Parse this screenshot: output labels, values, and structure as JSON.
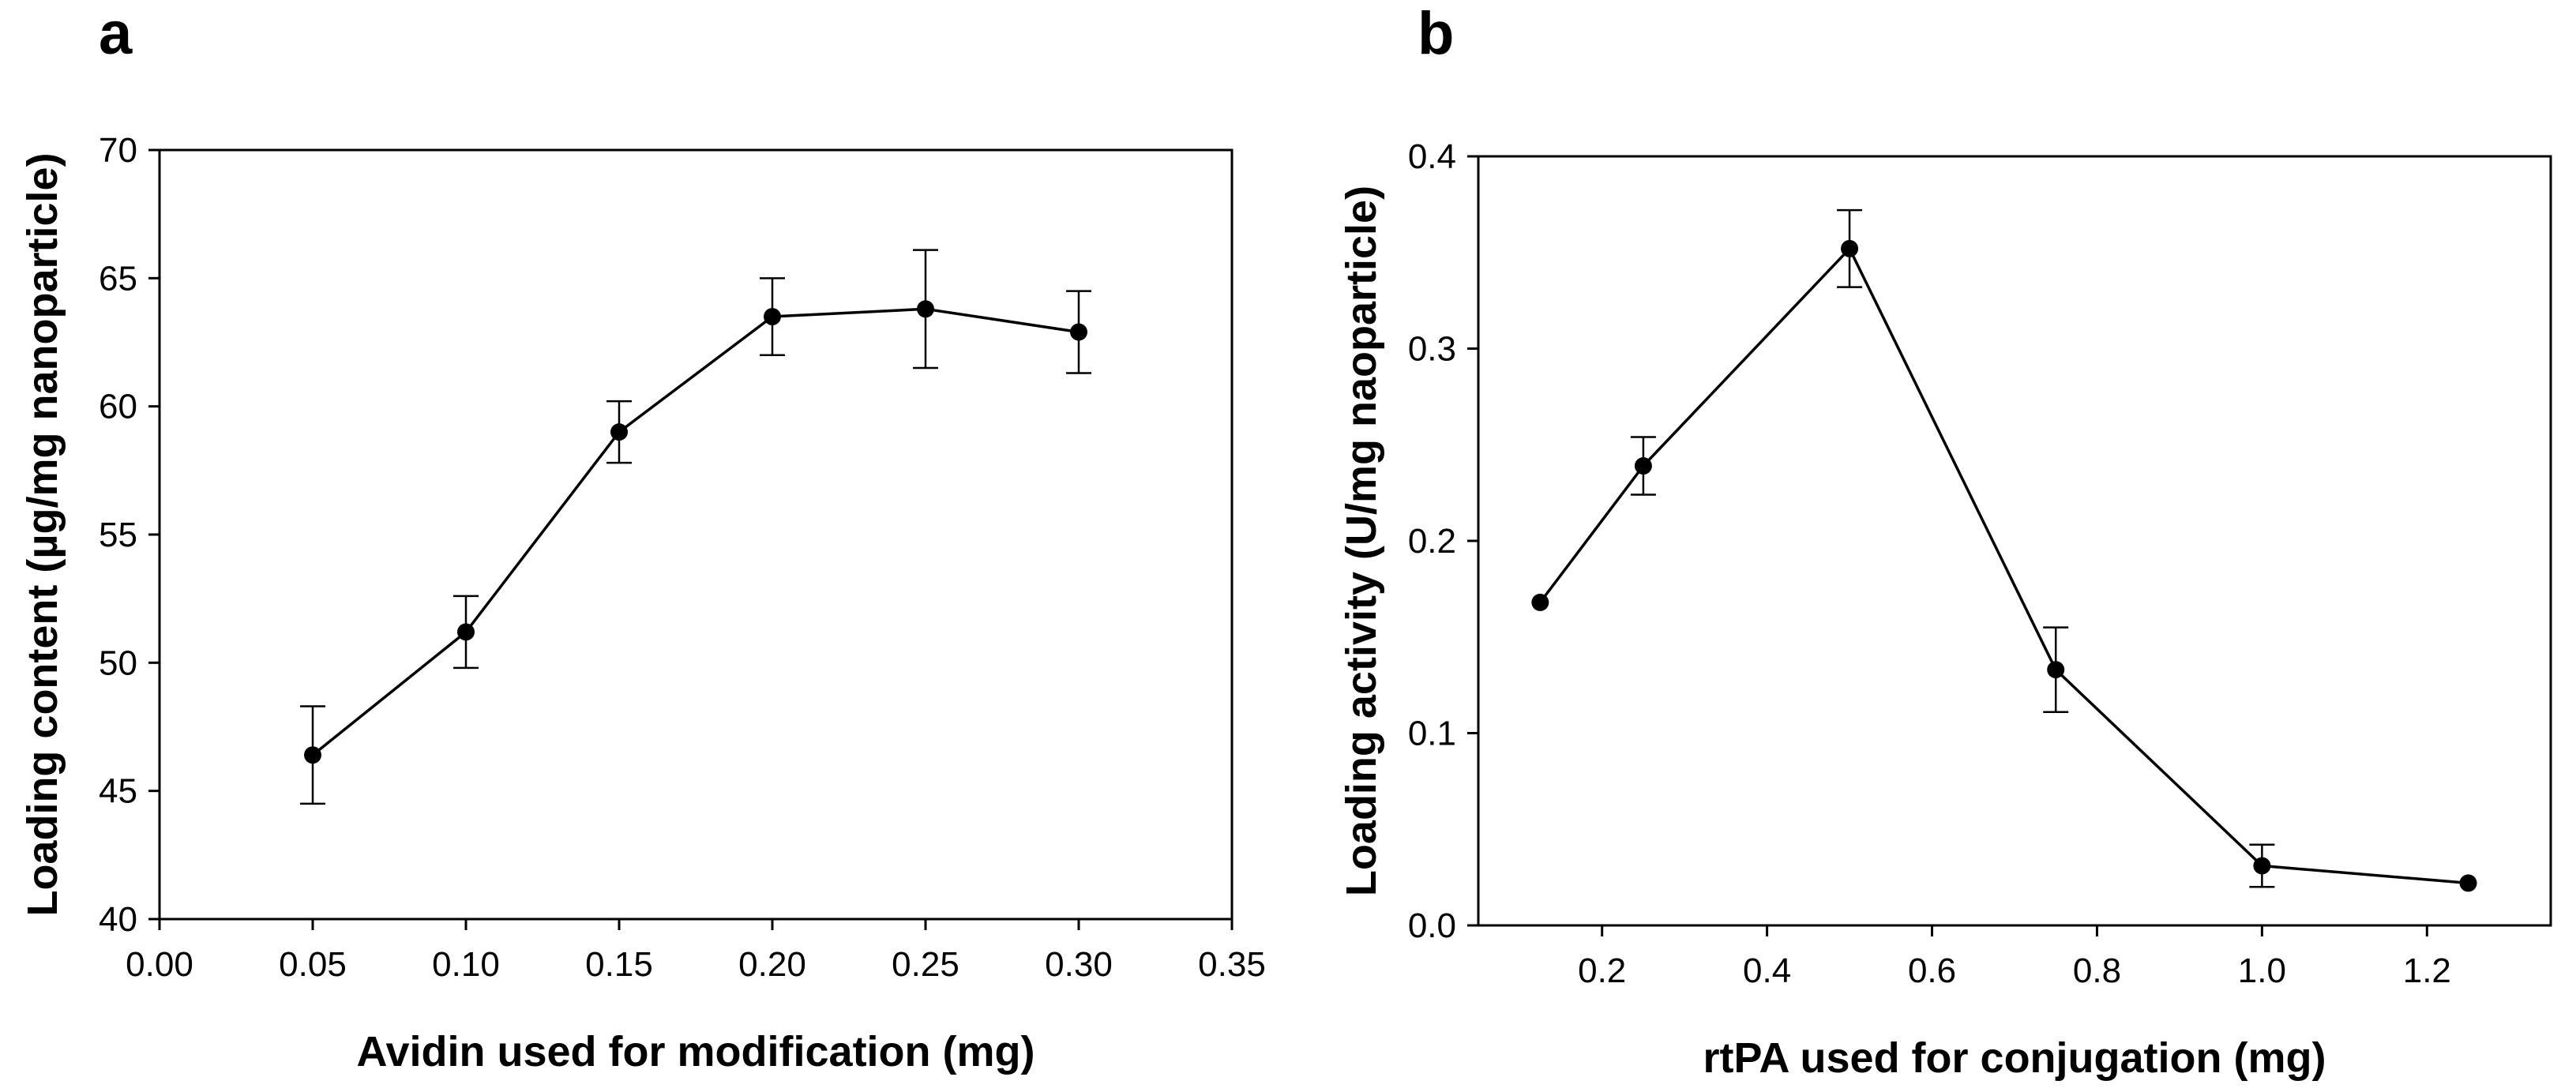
{
  "chart_data": [
    {
      "panel": "a",
      "type": "line",
      "title": "",
      "xlabel": "Avidin used for modification (mg)",
      "ylabel": "Loading content (µg/mg nanoparticle)",
      "xlim": [
        0.0,
        0.35
      ],
      "ylim": [
        40,
        70
      ],
      "xticks": [
        0.0,
        0.05,
        0.1,
        0.15,
        0.2,
        0.25,
        0.3,
        0.35
      ],
      "xtick_labels": [
        "0.00",
        "0.05",
        "0.10",
        "0.15",
        "0.20",
        "0.25",
        "0.30",
        "0.35"
      ],
      "yticks": [
        40,
        45,
        50,
        55,
        60,
        65,
        70
      ],
      "ytick_labels": [
        "40",
        "45",
        "50",
        "55",
        "60",
        "65",
        "70"
      ],
      "grid": false,
      "series": [
        {
          "name": "Loading content",
          "x": [
            0.05,
            0.1,
            0.15,
            0.2,
            0.25,
            0.3
          ],
          "y": [
            46.4,
            51.2,
            59.0,
            63.5,
            63.8,
            62.9
          ],
          "yerr": [
            1.9,
            1.4,
            1.2,
            1.5,
            2.3,
            1.6
          ]
        }
      ]
    },
    {
      "panel": "b",
      "type": "line",
      "title": "",
      "xlabel": "rtPA used for conjugation (mg)",
      "ylabel": "Loading activity (U/mg naoparticle)",
      "xlim": [
        0.05,
        1.35
      ],
      "ylim": [
        0.0,
        0.4
      ],
      "xticks": [
        0.2,
        0.4,
        0.6,
        0.8,
        1.0,
        1.2
      ],
      "xtick_labels": [
        "0.2",
        "0.4",
        "0.6",
        "0.8",
        "1.0",
        "1.2"
      ],
      "yticks": [
        0.0,
        0.1,
        0.2,
        0.3,
        0.4
      ],
      "ytick_labels": [
        "0.0",
        "0.1",
        "0.2",
        "0.3",
        "0.4"
      ],
      "grid": false,
      "series": [
        {
          "name": "Loading activity",
          "x": [
            0.125,
            0.25,
            0.5,
            0.75,
            1.0,
            1.25
          ],
          "y": [
            0.168,
            0.239,
            0.352,
            0.133,
            0.031,
            0.022
          ],
          "yerr": [
            0.0,
            0.015,
            0.02,
            0.022,
            0.011,
            0.0
          ]
        }
      ]
    }
  ]
}
